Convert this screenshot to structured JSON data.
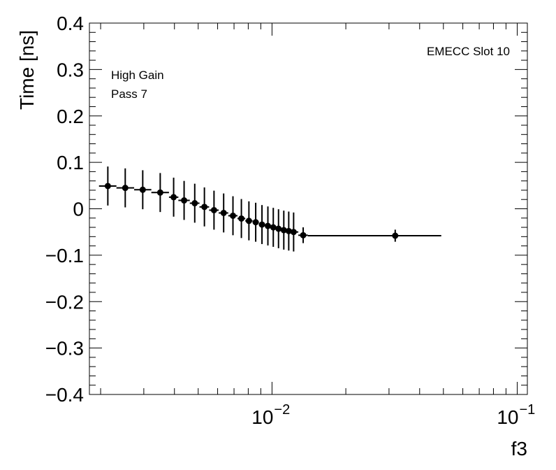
{
  "chart_data": {
    "type": "scatter",
    "title": "",
    "xlabel": "f3",
    "ylabel": "Time [ns]",
    "xscale": "log",
    "xlim": [
      0.0018,
      0.11
    ],
    "ylim": [
      -0.4,
      0.4
    ],
    "grid": false,
    "legend": "none",
    "annotations": {
      "top_right": "EMECC Slot 10",
      "top_left_line1": "High Gain",
      "top_left_line2": "Pass 7"
    },
    "y_ticks": [
      {
        "value": -0.4,
        "label": "−0.4"
      },
      {
        "value": -0.3,
        "label": "−0.3"
      },
      {
        "value": -0.2,
        "label": "−0.2"
      },
      {
        "value": -0.1,
        "label": "−0.1"
      },
      {
        "value": 0,
        "label": "0"
      },
      {
        "value": 0.1,
        "label": "0.1"
      },
      {
        "value": 0.2,
        "label": "0.2"
      },
      {
        "value": 0.3,
        "label": "0.3"
      },
      {
        "value": 0.4,
        "label": "0.4"
      }
    ],
    "x_ticks": [
      {
        "value": 0.01,
        "base": "10",
        "exp": "−2"
      },
      {
        "value": 0.1,
        "base": "10",
        "exp": "−1"
      }
    ],
    "points": [
      {
        "x": 0.00214,
        "y": 0.049,
        "xlo": 0.00197,
        "xhi": 0.00232,
        "yerr": 0.042
      },
      {
        "x": 0.00252,
        "y": 0.045,
        "xlo": 0.00232,
        "xhi": 0.00274,
        "yerr": 0.042
      },
      {
        "x": 0.00297,
        "y": 0.041,
        "xlo": 0.00274,
        "xhi": 0.00322,
        "yerr": 0.042
      },
      {
        "x": 0.0035,
        "y": 0.035,
        "xlo": 0.00322,
        "xhi": 0.0038,
        "yerr": 0.042
      },
      {
        "x": 0.00397,
        "y": 0.025,
        "xlo": 0.0038,
        "xhi": 0.00415,
        "yerr": 0.042
      },
      {
        "x": 0.00438,
        "y": 0.018,
        "xlo": 0.00415,
        "xhi": 0.00462,
        "yerr": 0.042
      },
      {
        "x": 0.00484,
        "y": 0.012,
        "xlo": 0.00462,
        "xhi": 0.00506,
        "yerr": 0.042
      },
      {
        "x": 0.0053,
        "y": 0.004,
        "xlo": 0.00506,
        "xhi": 0.00554,
        "yerr": 0.042
      },
      {
        "x": 0.0058,
        "y": -0.003,
        "xlo": 0.00554,
        "xhi": 0.00606,
        "yerr": 0.042
      },
      {
        "x": 0.00635,
        "y": -0.009,
        "xlo": 0.00606,
        "xhi": 0.00663,
        "yerr": 0.042
      },
      {
        "x": 0.00693,
        "y": -0.015,
        "xlo": 0.00663,
        "xhi": 0.00723,
        "yerr": 0.042
      },
      {
        "x": 0.0075,
        "y": -0.021,
        "xlo": 0.00723,
        "xhi": 0.00778,
        "yerr": 0.042
      },
      {
        "x": 0.00805,
        "y": -0.026,
        "xlo": 0.00778,
        "xhi": 0.00833,
        "yerr": 0.042
      },
      {
        "x": 0.00858,
        "y": -0.029,
        "xlo": 0.00833,
        "xhi": 0.00884,
        "yerr": 0.042
      },
      {
        "x": 0.0091,
        "y": -0.034,
        "xlo": 0.00884,
        "xhi": 0.00937,
        "yerr": 0.042
      },
      {
        "x": 0.00962,
        "y": -0.037,
        "xlo": 0.00937,
        "xhi": 0.00987,
        "yerr": 0.042
      },
      {
        "x": 0.01012,
        "y": -0.04,
        "xlo": 0.00987,
        "xhi": 0.01037,
        "yerr": 0.042
      },
      {
        "x": 0.01063,
        "y": -0.043,
        "xlo": 0.01037,
        "xhi": 0.0109,
        "yerr": 0.042
      },
      {
        "x": 0.01117,
        "y": -0.046,
        "xlo": 0.0109,
        "xhi": 0.01143,
        "yerr": 0.042
      },
      {
        "x": 0.0117,
        "y": -0.048,
        "xlo": 0.01143,
        "xhi": 0.01197,
        "yerr": 0.042
      },
      {
        "x": 0.01225,
        "y": -0.05,
        "xlo": 0.01197,
        "xhi": 0.0128,
        "yerr": 0.042
      },
      {
        "x": 0.0134,
        "y": -0.057,
        "xlo": 0.0128,
        "xhi": 0.014,
        "yerr": 0.017
      },
      {
        "x": 0.0318,
        "y": -0.058,
        "xlo": 0.014,
        "xhi": 0.049,
        "yerr": 0.013
      }
    ]
  }
}
